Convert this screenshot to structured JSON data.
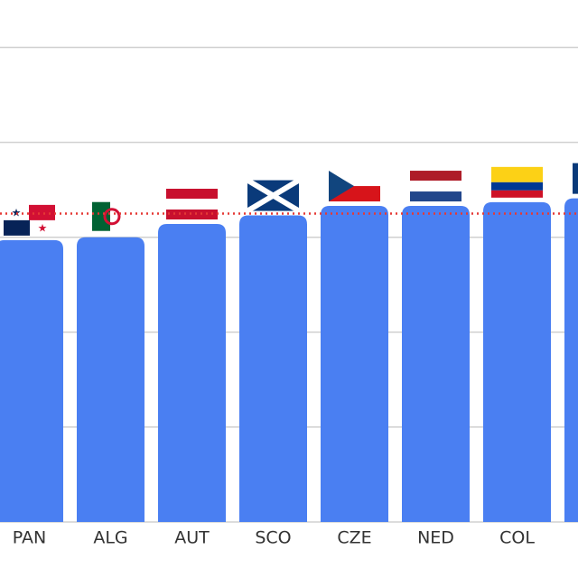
{
  "chart_data": {
    "type": "bar",
    "categories": [
      "PAN",
      "ALG",
      "AUT",
      "SCO",
      "CZE",
      "NED",
      "COL",
      null
    ],
    "values": [
      2.97,
      3.0,
      3.14,
      3.23,
      3.33,
      3.33,
      3.37,
      3.41
    ],
    "color": "#4a7ff2",
    "ylim": [
      0,
      5.5
    ],
    "yticks": [
      0,
      1,
      2,
      3,
      4,
      5
    ],
    "grid": true,
    "reference_line": {
      "value": 3.25,
      "color": "#e53935"
    }
  }
}
